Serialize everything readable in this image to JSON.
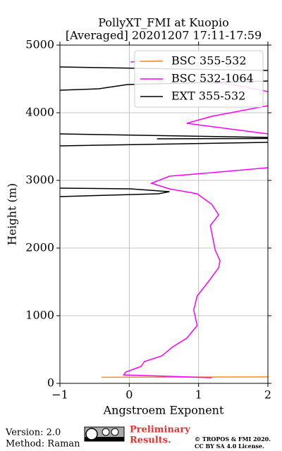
{
  "chart_data": {
    "type": "line",
    "title": [
      "PollyXT_FMI at Kuopio",
      "[Averaged] 20201207 17:11-17:59"
    ],
    "x_label": "Angstroem Exponent",
    "y_label": "Height (m)",
    "xlim": [
      -1,
      2
    ],
    "ylim": [
      0,
      5000
    ],
    "xticks": [
      {
        "value": -1,
        "label": "−1"
      },
      0,
      1,
      2
    ],
    "yticks": [
      0,
      1000,
      2000,
      3000,
      4000,
      5000
    ],
    "grid": true,
    "legend": "upper right",
    "series": [
      {
        "name": "BSC 355-532",
        "color": "#ff8c1a",
        "x": [
          -0.4,
          2
        ],
        "values": [
          90,
          95
        ]
      },
      {
        "name": "BSC 532-1064",
        "color": "#ff00ff",
        "x": [
          1.19,
          -0.08,
          -0.05,
          0.17,
          0.22,
          0.47,
          0.63,
          0.83,
          0.98,
          0.93,
          0.98,
          1.14,
          1.29,
          1.31,
          1.24,
          1.19,
          1.17,
          1.29,
          1.19,
          0.98,
          0.58,
          0.32,
          0.58,
          1.19,
          2,
          null,
          2,
          0.83,
          1.19,
          2,
          null,
          2,
          1.49,
          1.2,
          null,
          0.02,
          0.47
        ],
        "values": [
          83,
          125,
          167,
          250,
          323,
          406,
          542,
          667,
          854,
          1083,
          1292,
          1500,
          1708,
          1812,
          1969,
          2229,
          2333,
          2490,
          2646,
          2802,
          2875,
          2958,
          3063,
          3115,
          3188,
          null,
          3688,
          3844,
          3948,
          4104,
          null,
          4313,
          4417,
          4440,
          null,
          4750,
          4781
        ]
      },
      {
        "name": "EXT 355-532",
        "color": "#000000",
        "x": [
          -1,
          0.42,
          0.58,
          0.02,
          -1,
          null,
          -1,
          2,
          null,
          -1,
          2,
          null,
          0.4,
          2,
          null,
          -1,
          -0.44,
          -0.03,
          2,
          null,
          -1,
          2
        ],
        "values": [
          2760,
          2802,
          2833,
          2875,
          2885,
          null,
          3510,
          3563,
          null,
          3688,
          3635,
          null,
          3615,
          3620,
          null,
          4333,
          4354,
          4417,
          4469,
          null,
          4677,
          4625
        ]
      }
    ]
  },
  "footer": {
    "version": "Version: 2.0",
    "method": "Method: Raman",
    "preliminary": [
      "Preliminary",
      "Results."
    ],
    "copyright": [
      "© TROPOS & FMI 2020.",
      "CC BY SA 4.0 License."
    ]
  }
}
